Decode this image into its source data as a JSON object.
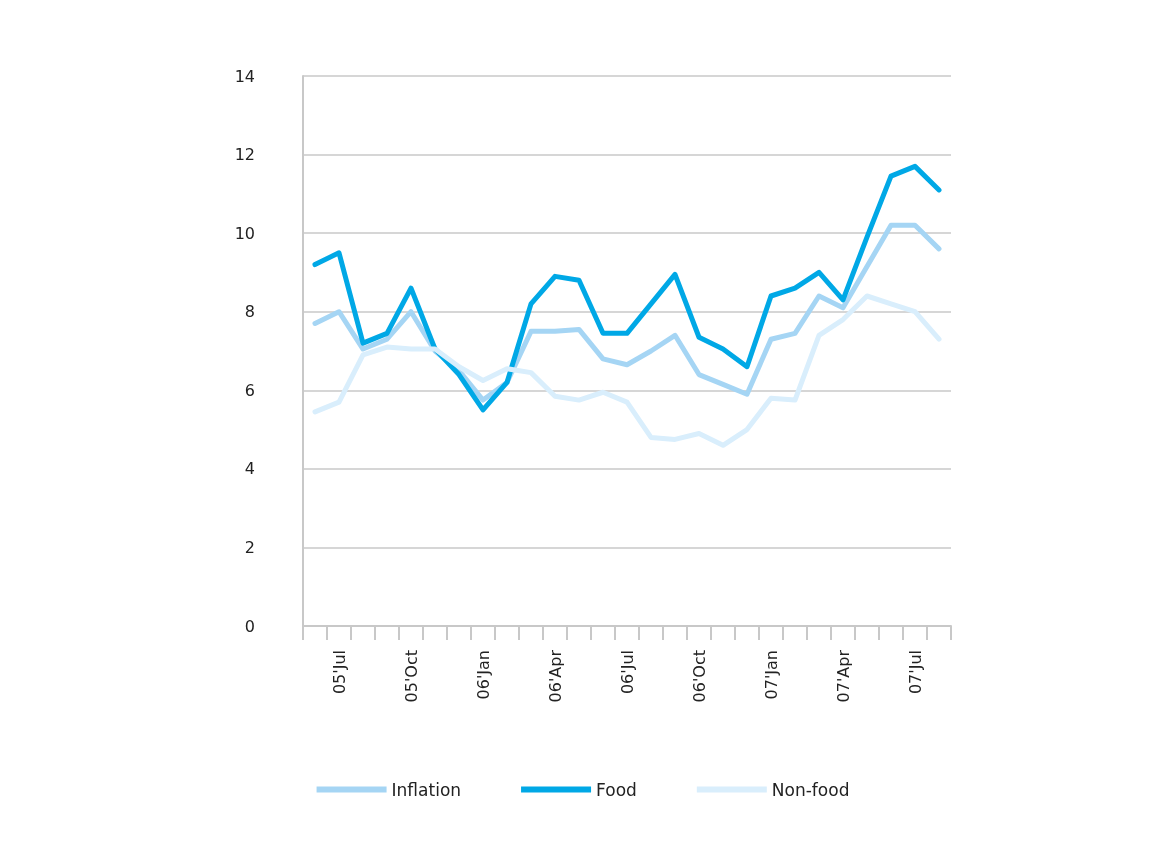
{
  "chart_data": {
    "type": "line",
    "categories": [
      null,
      "05'Jul",
      null,
      null,
      "05'Oct",
      null,
      null,
      "06'Jan",
      null,
      null,
      "06'Apr",
      null,
      null,
      "06'Jul",
      null,
      null,
      "06'Oct",
      null,
      null,
      "07'Jan",
      null,
      null,
      "07'Apr",
      null,
      null,
      "07'Jul",
      null
    ],
    "series": [
      {
        "name": "Inflation",
        "color": "#a5d5f4",
        "values": [
          7.7,
          8.0,
          7.05,
          7.3,
          8.0,
          7.0,
          6.5,
          5.75,
          6.2,
          7.5,
          7.5,
          7.55,
          6.8,
          6.65,
          7.0,
          7.4,
          6.4,
          6.15,
          5.9,
          7.3,
          7.45,
          8.4,
          8.1,
          9.15,
          10.2,
          10.2,
          9.6
        ]
      },
      {
        "name": "Food",
        "color": "#00a8e6",
        "values": [
          9.2,
          9.5,
          7.2,
          7.45,
          8.6,
          7.05,
          6.4,
          5.5,
          6.2,
          8.2,
          8.9,
          8.8,
          7.45,
          7.45,
          8.2,
          8.95,
          7.35,
          7.05,
          6.6,
          8.4,
          8.6,
          9.0,
          8.3,
          9.9,
          11.45,
          11.7,
          11.1
        ]
      },
      {
        "name": "Non-food",
        "color": "#d9eefc",
        "values": [
          5.45,
          5.7,
          6.9,
          7.1,
          7.05,
          7.05,
          6.6,
          6.25,
          6.55,
          6.45,
          5.85,
          5.75,
          5.95,
          5.7,
          4.8,
          4.75,
          4.9,
          4.6,
          5.0,
          5.8,
          5.75,
          7.4,
          7.8,
          8.4,
          8.2,
          8.0,
          7.3
        ]
      }
    ],
    "ylim": [
      0,
      14
    ],
    "yticks": [
      0,
      2,
      4,
      6,
      8,
      10,
      12,
      14
    ],
    "grid": "y",
    "legend": "bottom",
    "marker": "none",
    "line_style": "solid"
  }
}
